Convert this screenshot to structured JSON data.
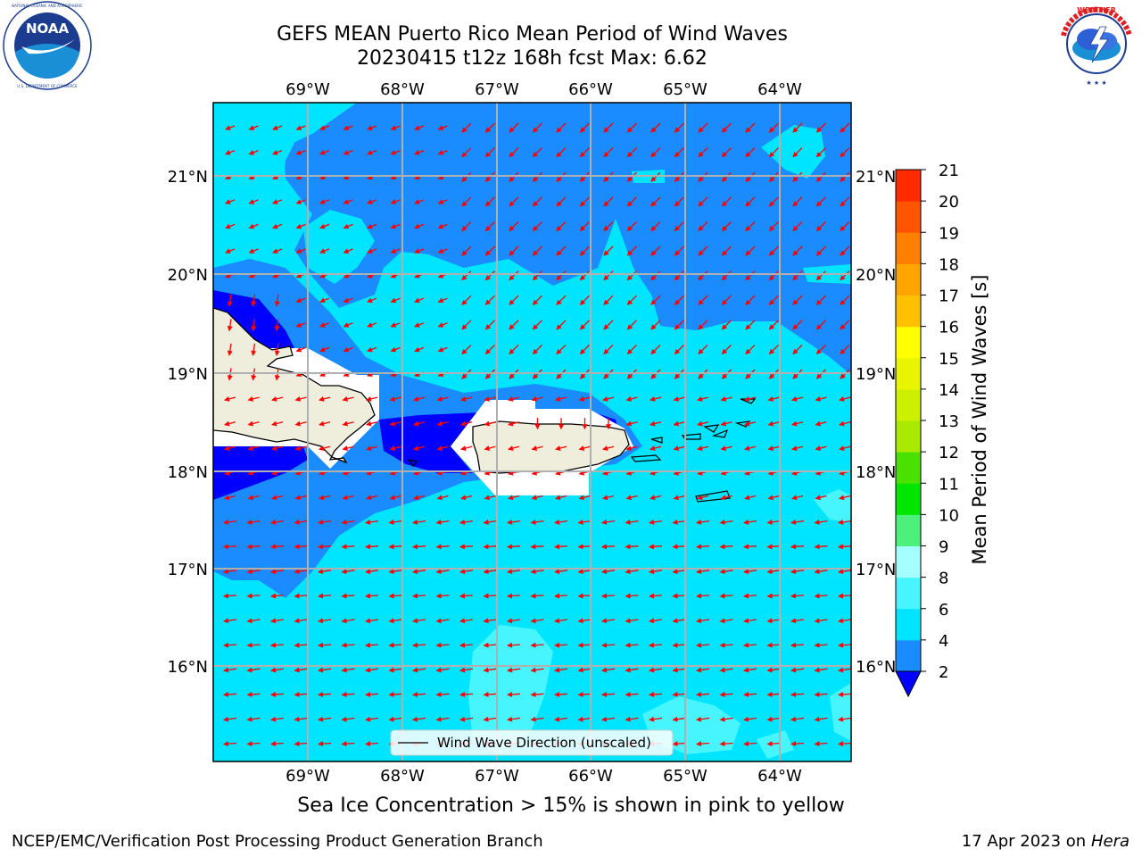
{
  "header": {
    "title_line1": "GEFS MEAN Puerto Rico Mean Period of Wind Waves",
    "title_line2": "20230415 t12z 168h fcst   Max: 6.62"
  },
  "logos": {
    "left": {
      "icon": "noaa-logo",
      "text": "NOAA",
      "ring_text": "NATIONAL OCEANIC AND ATMOSPHERIC ADMINISTRATION · U.S. DEPARTMENT OF COMMERCE"
    },
    "right": {
      "icon": "nws-logo",
      "ring_text": "NATIONAL WEATHER SERVICE"
    }
  },
  "map": {
    "lon_range": [
      -70.0,
      -63.25
    ],
    "lat_range": [
      15.0,
      21.75
    ],
    "lon_ticks": [
      "69°W",
      "68°W",
      "67°W",
      "66°W",
      "65°W",
      "64°W"
    ],
    "lat_ticks": [
      "21°N",
      "20°N",
      "19°N",
      "18°N",
      "17°N",
      "16°N"
    ],
    "grid": true,
    "legend": {
      "label": "Wind Wave Direction (unscaled)",
      "placement": "bottom-center"
    },
    "arrow_color": "#ff0000",
    "land_color": "#efeddc"
  },
  "colorbar": {
    "label": "Mean Period of Wind Waves [s]",
    "ticks": [
      "2",
      "4",
      "6",
      "8",
      "9",
      "10",
      "11",
      "12",
      "13",
      "14",
      "15",
      "16",
      "17",
      "18",
      "19",
      "20",
      "21"
    ],
    "colors": [
      "#1a8cff",
      "#00e5ff",
      "#47f5ff",
      "#a6ffff",
      "#4cf07a",
      "#00e600",
      "#4ae000",
      "#aaea00",
      "#cdf000",
      "#e9f500",
      "#ffff00",
      "#ffc000",
      "#ffa500",
      "#ff8000",
      "#ff5500",
      "#ff2a00"
    ],
    "under_color": "#0000ff",
    "extend": "min"
  },
  "caption": "Sea Ice Concentration > 15% is shown in pink to yellow",
  "footer": {
    "left": "NCEP/EMC/Verification Post Processing Product Generation Branch",
    "right_prefix": "17 Apr 2023 on ",
    "right_italic": "Hera"
  }
}
